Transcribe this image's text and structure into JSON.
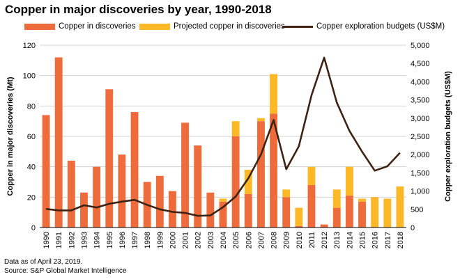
{
  "title": "Copper in major discoveries by year, 1990-2018",
  "footer": {
    "line1": "Data as of April 23, 2019.",
    "line2": "Source: S&P Global Market Intelligence"
  },
  "colors": {
    "copper": "#ee6b3c",
    "projected": "#fdb827",
    "budget": "#3d2313",
    "grid": "#d0d0d0"
  },
  "chart_data": {
    "type": "bar",
    "title": "Copper in major discoveries by year, 1990-2018",
    "categories": [
      "1990",
      "1991",
      "1992",
      "1993",
      "1994",
      "1995",
      "1996",
      "1997",
      "1998",
      "1999",
      "2000",
      "2001",
      "2002",
      "2003",
      "2004",
      "2005",
      "2006",
      "2007",
      "2008",
      "2009",
      "2010",
      "2011",
      "2012",
      "2013",
      "2014",
      "2015",
      "2016",
      "2017",
      "2018"
    ],
    "series": [
      {
        "name": "Copper in discoveries",
        "kind": "bar",
        "axis": "left",
        "values": [
          74,
          112,
          44,
          23,
          40,
          91,
          48,
          76,
          30,
          34,
          24,
          69,
          54,
          23,
          17,
          60,
          22,
          70,
          75,
          20,
          1,
          28,
          2,
          13,
          21,
          17,
          0,
          0,
          0
        ]
      },
      {
        "name": "Projected copper in discoveries",
        "kind": "bar-stacked",
        "axis": "left",
        "values": [
          0,
          0,
          0,
          0,
          0,
          0,
          0,
          0,
          0,
          0,
          0,
          0,
          0,
          0,
          2,
          10,
          16,
          2,
          26,
          5,
          12,
          12,
          0,
          12,
          19,
          2,
          20,
          19,
          27
        ]
      },
      {
        "name": "Copper exploration budgets (US$M)",
        "kind": "line",
        "axis": "right",
        "values": [
          510,
          470,
          470,
          610,
          550,
          650,
          710,
          760,
          620,
          500,
          430,
          400,
          320,
          330,
          560,
          850,
          1350,
          2000,
          2950,
          1600,
          2230,
          3630,
          4660,
          3430,
          2650,
          2080,
          1560,
          1680,
          2050
        ]
      }
    ],
    "ylabel": "Copper in major discoveries (Mt)",
    "ylabel_right": "Copper exploration budgets (US$M)",
    "ylim": [
      0,
      120
    ],
    "ylim_right": [
      0,
      5000
    ],
    "yticks": [
      "0",
      "20",
      "40",
      "60",
      "80",
      "100",
      "120"
    ],
    "yticks_right": [
      "0",
      "500",
      "1,000",
      "1,500",
      "2,000",
      "2,500",
      "3,000",
      "3,500",
      "4,000",
      "4,500",
      "5,000"
    ],
    "grid": true,
    "legend": "top"
  }
}
